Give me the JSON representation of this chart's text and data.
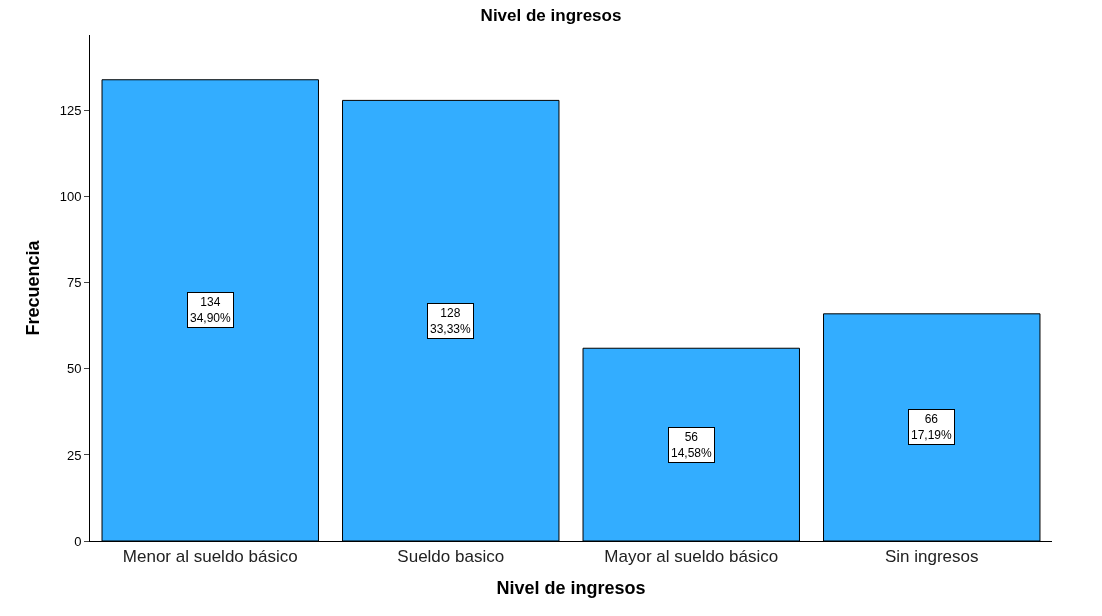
{
  "chart_data": {
    "type": "bar",
    "title": "Nivel de ingresos",
    "xlabel": "Nivel de ingresos",
    "ylabel": "Frecuencia",
    "categories": [
      "Menor al sueldo básico",
      "Sueldo basico",
      "Mayor al sueldo básico",
      "Sin ingresos"
    ],
    "values": [
      134,
      128,
      56,
      66
    ],
    "value_labels": [
      "134\n34,90%",
      "128\n33,33%",
      "56\n14,58%",
      "66\n17,19%"
    ],
    "color": "#33adff",
    "ylim": [
      0,
      147
    ],
    "yticks": [
      0,
      25,
      50,
      75,
      100,
      125
    ]
  }
}
